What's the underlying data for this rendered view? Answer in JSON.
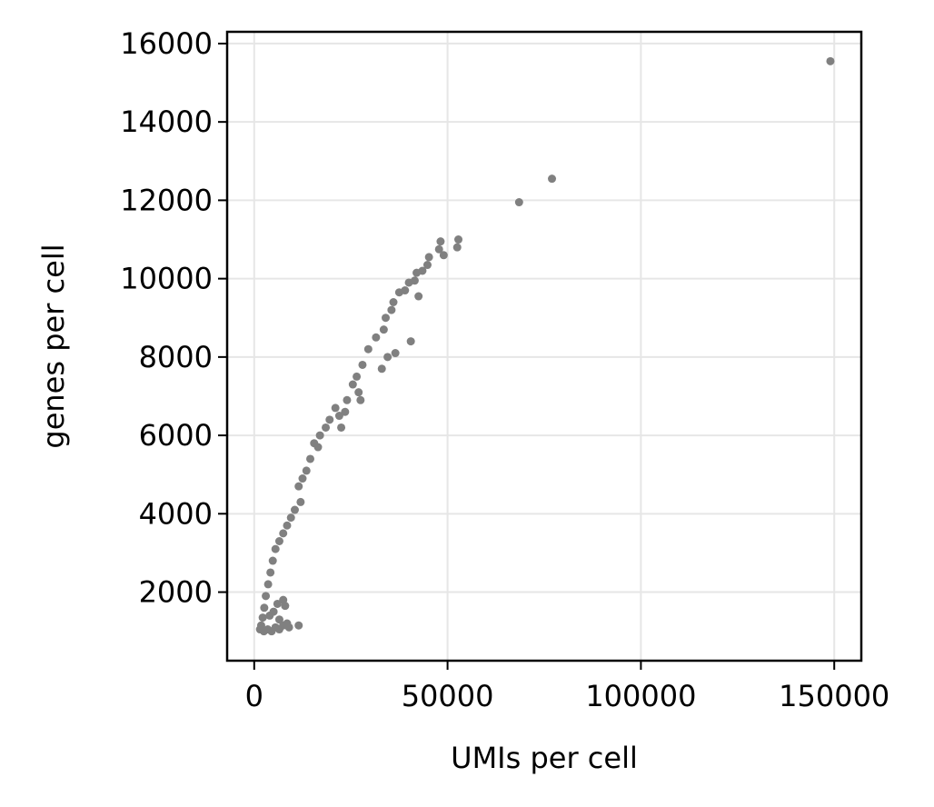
{
  "chart_data": {
    "type": "scatter",
    "title": "",
    "xlabel": "UMIs per cell",
    "ylabel": "genes per cell",
    "xlim": [
      -7000,
      157000
    ],
    "ylim": [
      250,
      16300
    ],
    "xticks": [
      0,
      50000,
      100000,
      150000
    ],
    "yticks": [
      2000,
      4000,
      6000,
      8000,
      10000,
      12000,
      14000,
      16000
    ],
    "xtick_labels": [
      "0",
      "50000",
      "100000",
      "150000"
    ],
    "ytick_labels": [
      "2000",
      "4000",
      "6000",
      "8000",
      "10000",
      "12000",
      "14000",
      "16000"
    ],
    "grid": true,
    "marker_color": "#808080",
    "series": [
      {
        "points": [
          [
            149000,
            15550
          ],
          [
            77000,
            12550
          ],
          [
            68500,
            11950
          ],
          [
            52800,
            11000
          ],
          [
            52500,
            10800
          ],
          [
            48200,
            10950
          ],
          [
            47800,
            10750
          ],
          [
            49000,
            10600
          ],
          [
            45200,
            10550
          ],
          [
            44800,
            10350
          ],
          [
            43500,
            10200
          ],
          [
            42000,
            10150
          ],
          [
            41500,
            9950
          ],
          [
            40000,
            9900
          ],
          [
            39000,
            9700
          ],
          [
            42500,
            9550
          ],
          [
            40500,
            8400
          ],
          [
            37500,
            9650
          ],
          [
            36000,
            9400
          ],
          [
            35500,
            9200
          ],
          [
            34000,
            9000
          ],
          [
            33500,
            8700
          ],
          [
            31500,
            8500
          ],
          [
            36500,
            8100
          ],
          [
            34500,
            8000
          ],
          [
            33000,
            7700
          ],
          [
            29500,
            8200
          ],
          [
            28000,
            7800
          ],
          [
            26500,
            7500
          ],
          [
            27000,
            7100
          ],
          [
            25500,
            7300
          ],
          [
            24000,
            6900
          ],
          [
            23500,
            6600
          ],
          [
            22000,
            6500
          ],
          [
            27500,
            6900
          ],
          [
            22500,
            6200
          ],
          [
            21000,
            6700
          ],
          [
            19500,
            6400
          ],
          [
            18500,
            6200
          ],
          [
            17000,
            6000
          ],
          [
            16500,
            5700
          ],
          [
            15500,
            5800
          ],
          [
            14500,
            5400
          ],
          [
            13500,
            5100
          ],
          [
            12500,
            4900
          ],
          [
            11500,
            4700
          ],
          [
            12000,
            4300
          ],
          [
            10500,
            4100
          ],
          [
            9500,
            3900
          ],
          [
            8500,
            3700
          ],
          [
            7500,
            3500
          ],
          [
            6500,
            3300
          ],
          [
            5500,
            3100
          ],
          [
            4800,
            2800
          ],
          [
            4200,
            2500
          ],
          [
            3600,
            2200
          ],
          [
            3000,
            1900
          ],
          [
            2600,
            1600
          ],
          [
            2200,
            1350
          ],
          [
            1800,
            1150
          ],
          [
            1500,
            1050
          ],
          [
            2500,
            1000
          ],
          [
            3500,
            1050
          ],
          [
            4500,
            1000
          ],
          [
            5500,
            1100
          ],
          [
            6500,
            1050
          ],
          [
            7500,
            1150
          ],
          [
            8500,
            1200
          ],
          [
            9000,
            1100
          ],
          [
            11500,
            1150
          ],
          [
            7500,
            1800
          ],
          [
            6000,
            1700
          ],
          [
            8000,
            1650
          ],
          [
            5000,
            1500
          ],
          [
            4000,
            1400
          ],
          [
            6500,
            1300
          ]
        ]
      }
    ]
  }
}
